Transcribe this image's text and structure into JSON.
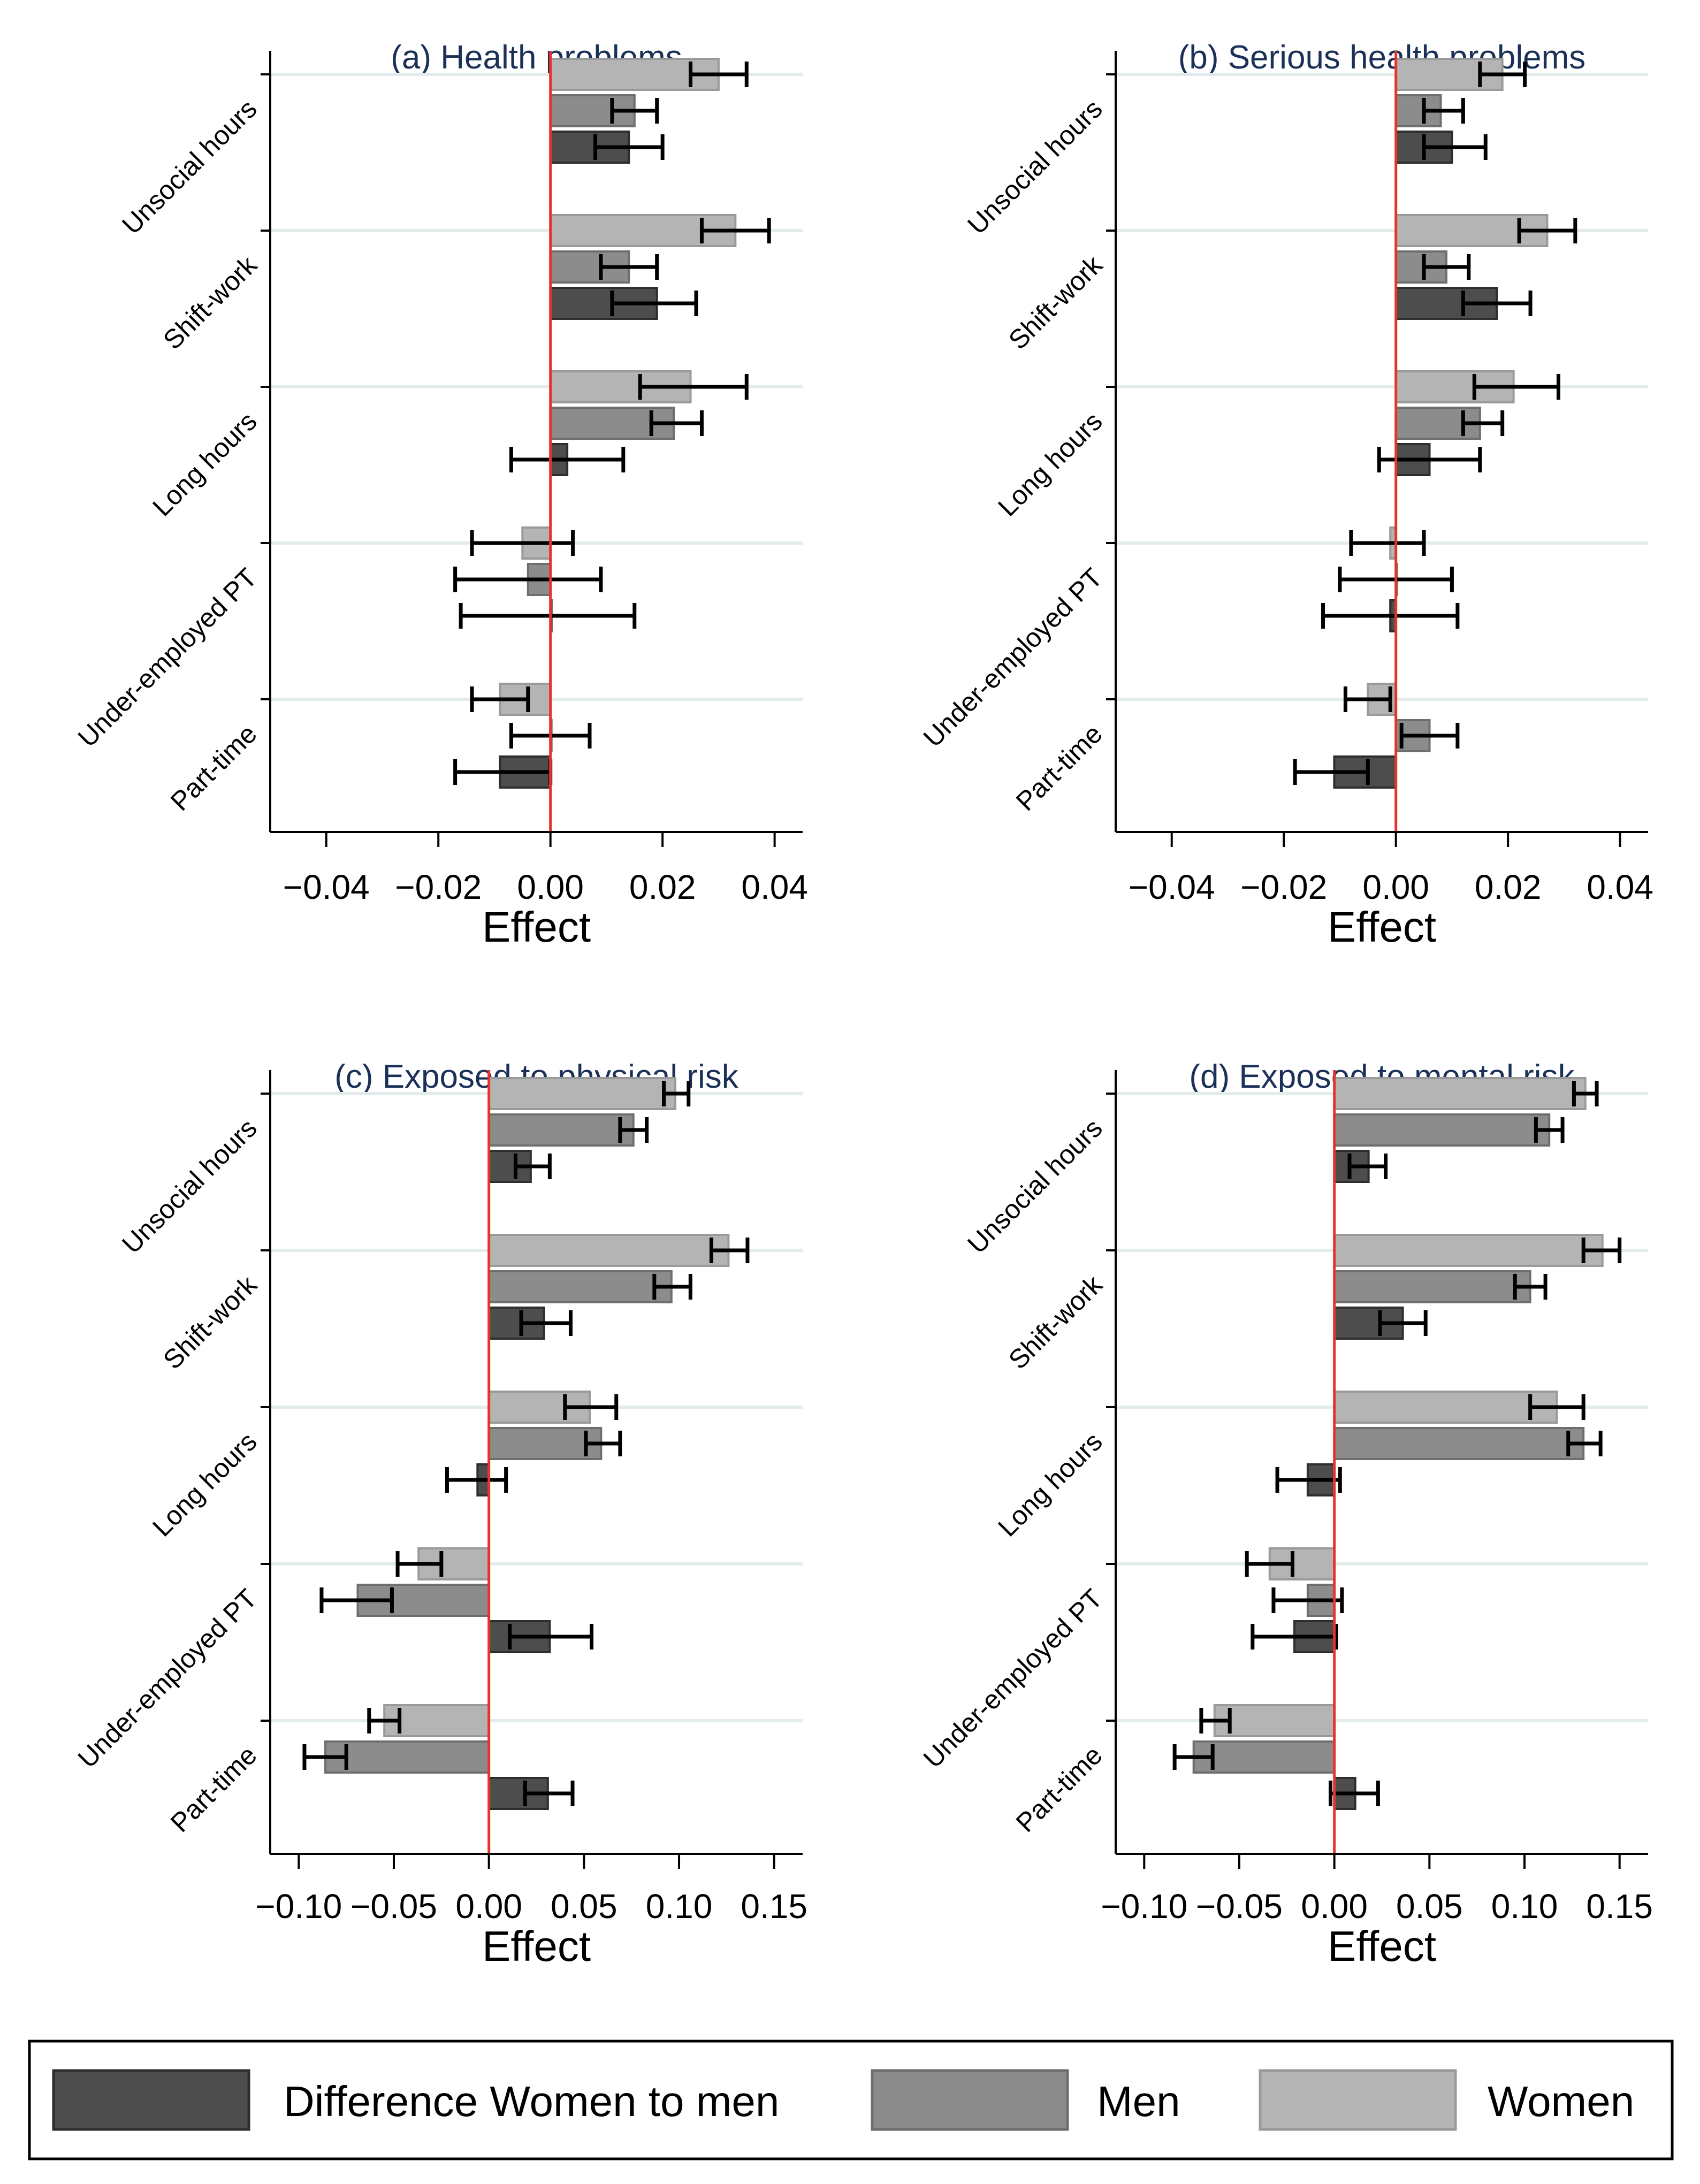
{
  "legend": {
    "items": [
      {
        "key": "diff",
        "label": "Difference Women to men",
        "color": "#4d4d4d"
      },
      {
        "key": "men",
        "label": "Men",
        "color": "#8c8c8c"
      },
      {
        "key": "women",
        "label": "Women",
        "color": "#b4b4b4"
      }
    ]
  },
  "chart_data": [
    {
      "type": "bar",
      "orientation": "horizontal",
      "title": "(a) Health problems",
      "xlabel": "Effect",
      "xlim": [
        -0.05,
        0.045
      ],
      "xticks": [
        -0.04,
        -0.02,
        0.0,
        0.02,
        0.04
      ],
      "xtick_labels": [
        "−0.04",
        "−0.02",
        "0.00",
        "0.02",
        "0.04"
      ],
      "categories": [
        "Unsocial hours",
        "Shift-work",
        "Long hours",
        "Under-employed PT",
        "Part-time"
      ],
      "series": [
        {
          "name": "Women",
          "values": [
            0.03,
            0.033,
            0.025,
            -0.005,
            -0.009
          ],
          "ci_low": [
            0.025,
            0.027,
            0.016,
            -0.014,
            -0.014
          ],
          "ci_high": [
            0.035,
            0.039,
            0.035,
            0.004,
            -0.004
          ]
        },
        {
          "name": "Men",
          "values": [
            0.015,
            0.014,
            0.022,
            -0.004,
            0.0
          ],
          "ci_low": [
            0.011,
            0.009,
            0.018,
            -0.017,
            -0.007
          ],
          "ci_high": [
            0.019,
            0.019,
            0.027,
            0.009,
            0.007
          ]
        },
        {
          "name": "Difference Women to men",
          "values": [
            0.014,
            0.019,
            0.003,
            0.0,
            -0.009
          ],
          "ci_low": [
            0.008,
            0.011,
            -0.007,
            -0.016,
            -0.017
          ],
          "ci_high": [
            0.02,
            0.026,
            0.013,
            0.015,
            0.0
          ]
        }
      ]
    },
    {
      "type": "bar",
      "orientation": "horizontal",
      "title": "(b) Serious health problems",
      "xlabel": "Effect",
      "xlim": [
        -0.05,
        0.045
      ],
      "xticks": [
        -0.04,
        -0.02,
        0.0,
        0.02,
        0.04
      ],
      "xtick_labels": [
        "−0.04",
        "−0.02",
        "0.00",
        "0.02",
        "0.04"
      ],
      "categories": [
        "Unsocial hours",
        "Shift-work",
        "Long hours",
        "Under-employed PT",
        "Part-time"
      ],
      "series": [
        {
          "name": "Women",
          "values": [
            0.019,
            0.027,
            0.021,
            -0.001,
            -0.005
          ],
          "ci_low": [
            0.015,
            0.022,
            0.014,
            -0.008,
            -0.009
          ],
          "ci_high": [
            0.023,
            0.032,
            0.029,
            0.005,
            -0.001
          ]
        },
        {
          "name": "Men",
          "values": [
            0.008,
            0.009,
            0.015,
            0.0,
            0.006
          ],
          "ci_low": [
            0.005,
            0.005,
            0.012,
            -0.01,
            0.001
          ],
          "ci_high": [
            0.012,
            0.013,
            0.019,
            0.01,
            0.011
          ]
        },
        {
          "name": "Difference Women to men",
          "values": [
            0.01,
            0.018,
            0.006,
            -0.001,
            -0.011
          ],
          "ci_low": [
            0.005,
            0.012,
            -0.003,
            -0.013,
            -0.018
          ],
          "ci_high": [
            0.016,
            0.024,
            0.015,
            0.011,
            -0.005
          ]
        }
      ]
    },
    {
      "type": "bar",
      "orientation": "horizontal",
      "title": "(c) Exposed to physical risk",
      "xlabel": "Effect",
      "xlim": [
        -0.115,
        0.165
      ],
      "xticks": [
        -0.1,
        -0.05,
        0.0,
        0.05,
        0.1,
        0.15
      ],
      "xtick_labels": [
        "−0.10",
        "−0.05",
        "0.00",
        "0.05",
        "0.10",
        "0.15"
      ],
      "categories": [
        "Unsocial hours",
        "Shift-work",
        "Long hours",
        "Under-employed PT",
        "Part-time"
      ],
      "series": [
        {
          "name": "Women",
          "values": [
            0.098,
            0.126,
            0.053,
            -0.037,
            -0.055
          ],
          "ci_low": [
            0.092,
            0.117,
            0.04,
            -0.048,
            -0.063
          ],
          "ci_high": [
            0.105,
            0.136,
            0.067,
            -0.025,
            -0.047
          ]
        },
        {
          "name": "Men",
          "values": [
            0.076,
            0.096,
            0.059,
            -0.069,
            -0.086
          ],
          "ci_low": [
            0.069,
            0.087,
            0.051,
            -0.088,
            -0.097
          ],
          "ci_high": [
            0.083,
            0.106,
            0.069,
            -0.051,
            -0.075
          ]
        },
        {
          "name": "Difference Women to men",
          "values": [
            0.022,
            0.029,
            -0.006,
            0.032,
            0.031
          ],
          "ci_low": [
            0.014,
            0.017,
            -0.022,
            0.011,
            0.019
          ],
          "ci_high": [
            0.032,
            0.043,
            0.009,
            0.054,
            0.044
          ]
        }
      ]
    },
    {
      "type": "bar",
      "orientation": "horizontal",
      "title": "(d) Exposed to mental risk",
      "xlabel": "Effect",
      "xlim": [
        -0.115,
        0.165
      ],
      "xticks": [
        -0.1,
        -0.05,
        0.0,
        0.05,
        0.1,
        0.15
      ],
      "xtick_labels": [
        "−0.10",
        "−0.05",
        "0.00",
        "0.05",
        "0.10",
        "0.15"
      ],
      "categories": [
        "Unsocial hours",
        "Shift-work",
        "Long hours",
        "Under-employed PT",
        "Part-time"
      ],
      "series": [
        {
          "name": "Women",
          "values": [
            0.132,
            0.141,
            0.117,
            -0.034,
            -0.063
          ],
          "ci_low": [
            0.126,
            0.131,
            0.103,
            -0.046,
            -0.07
          ],
          "ci_high": [
            0.138,
            0.15,
            0.131,
            -0.022,
            -0.055
          ]
        },
        {
          "name": "Men",
          "values": [
            0.113,
            0.103,
            0.131,
            -0.014,
            -0.074
          ],
          "ci_low": [
            0.106,
            0.095,
            0.123,
            -0.032,
            -0.084
          ],
          "ci_high": [
            0.12,
            0.111,
            0.14,
            0.004,
            -0.064
          ]
        },
        {
          "name": "Difference Women to men",
          "values": [
            0.018,
            0.036,
            -0.014,
            -0.021,
            0.011
          ],
          "ci_low": [
            0.008,
            0.024,
            -0.03,
            -0.043,
            -0.002
          ],
          "ci_high": [
            0.027,
            0.048,
            0.003,
            0.001,
            0.023
          ]
        }
      ]
    }
  ]
}
